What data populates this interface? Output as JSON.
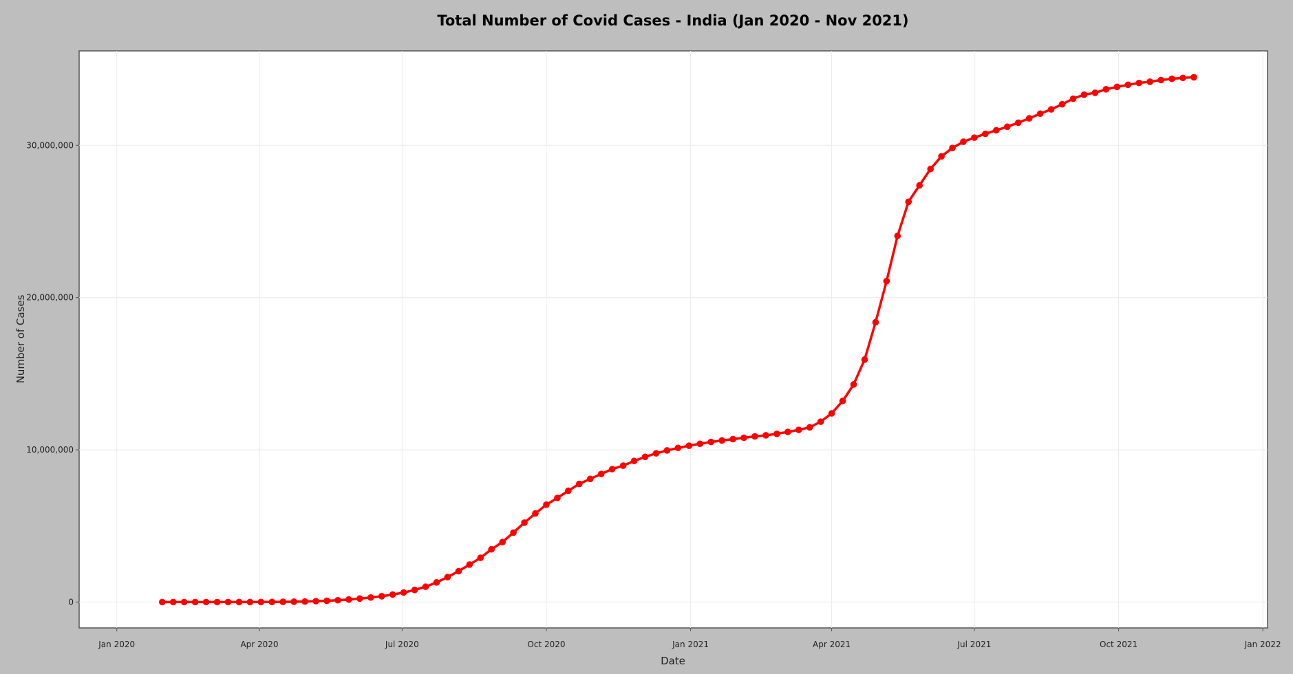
{
  "chart_data": {
    "type": "line",
    "title": "Total Number of Covid Cases - India (Jan 2020 - Nov 2021)",
    "xlabel": "Date",
    "ylabel": "Number of Cases",
    "x_tick_labels": [
      "Jan 2020",
      "Apr 2020",
      "Jul 2020",
      "Oct 2020",
      "Jan 2021",
      "Apr 2021",
      "Jul 2021",
      "Oct 2021",
      "Jan 2022"
    ],
    "x_tick_dates": [
      "2020-01-01",
      "2020-04-01",
      "2020-07-01",
      "2020-10-01",
      "2021-01-01",
      "2021-04-01",
      "2021-07-01",
      "2021-10-01",
      "2022-01-01"
    ],
    "y_tick_labels": [
      "0",
      "10,000,000",
      "20,000,000",
      "30,000,000"
    ],
    "y_tick_values": [
      0,
      10000000,
      20000000,
      30000000
    ],
    "xlim": [
      "2019-12-08",
      "2022-01-04"
    ],
    "ylim": [
      -1700000,
      36200000
    ],
    "grid": true,
    "line_color": "#ff0000",
    "background_color": "#bebebe",
    "plot_background_color": "#ffffff",
    "series": [
      {
        "x": [
          "2020-01-30",
          "2020-02-06",
          "2020-02-13",
          "2020-02-20",
          "2020-02-27",
          "2020-03-05",
          "2020-03-12",
          "2020-03-19",
          "2020-03-26",
          "2020-04-02",
          "2020-04-09",
          "2020-04-16",
          "2020-04-23",
          "2020-04-30",
          "2020-05-07",
          "2020-05-14",
          "2020-05-21",
          "2020-05-28",
          "2020-06-04",
          "2020-06-11",
          "2020-06-18",
          "2020-06-25",
          "2020-07-02",
          "2020-07-09",
          "2020-07-16",
          "2020-07-23",
          "2020-07-30",
          "2020-08-06",
          "2020-08-13",
          "2020-08-20",
          "2020-08-27",
          "2020-09-03",
          "2020-09-10",
          "2020-09-17",
          "2020-09-24",
          "2020-10-01",
          "2020-10-08",
          "2020-10-15",
          "2020-10-22",
          "2020-10-29",
          "2020-11-05",
          "2020-11-12",
          "2020-11-19",
          "2020-11-26",
          "2020-12-03",
          "2020-12-10",
          "2020-12-17",
          "2020-12-24",
          "2020-12-31",
          "2021-01-07",
          "2021-01-14",
          "2021-01-21",
          "2021-01-28",
          "2021-02-04",
          "2021-02-11",
          "2021-02-18",
          "2021-02-25",
          "2021-03-04",
          "2021-03-11",
          "2021-03-18",
          "2021-03-25",
          "2021-04-01",
          "2021-04-08",
          "2021-04-15",
          "2021-04-22",
          "2021-04-29",
          "2021-05-06",
          "2021-05-13",
          "2021-05-20",
          "2021-05-27",
          "2021-06-03",
          "2021-06-10",
          "2021-06-17",
          "2021-06-24",
          "2021-07-01",
          "2021-07-08",
          "2021-07-15",
          "2021-07-22",
          "2021-07-29",
          "2021-08-05",
          "2021-08-12",
          "2021-08-19",
          "2021-08-26",
          "2021-09-02",
          "2021-09-09",
          "2021-09-16",
          "2021-09-23",
          "2021-09-30",
          "2021-10-07",
          "2021-10-14",
          "2021-10-21",
          "2021-10-28",
          "2021-11-04",
          "2021-11-11",
          "2021-11-18"
        ],
        "y": [
          1,
          3,
          3,
          3,
          3,
          30,
          74,
          195,
          694,
          2069,
          6412,
          13430,
          23077,
          34863,
          56342,
          81970,
          118447,
          165799,
          226770,
          297535,
          381091,
          490401,
          625544,
          793802,
          1005637,
          1287945,
          1638870,
          2027074,
          2459613,
          2904329,
          3463972,
          3936747,
          4562414,
          5214677,
          5818570,
          6394068,
          6832988,
          7307097,
          7761312,
          8088851,
          8411724,
          8728795,
          8958483,
          9266705,
          9534964,
          9767371,
          9956557,
          10123778,
          10266674,
          10395278,
          10512093,
          10610883,
          10701193,
          10790183,
          10880603,
          10950201,
          11046914,
          11173761,
          11308846,
          11474605,
          11846652,
          12392260,
          13205926,
          14291917,
          15924806,
          18376524,
          21077410,
          24046809,
          26289290,
          27369093,
          28441986,
          29274823,
          29822764,
          30233183,
          30502362,
          30752950,
          30987880,
          31216337,
          31484605,
          31769132,
          32077706,
          32358829,
          32695030,
          33058843,
          33324990,
          33448163,
          33678786,
          33834702,
          33971607,
          34094373,
          34175468,
          34285814,
          34366987,
          34426362,
          34470000
        ]
      }
    ]
  }
}
